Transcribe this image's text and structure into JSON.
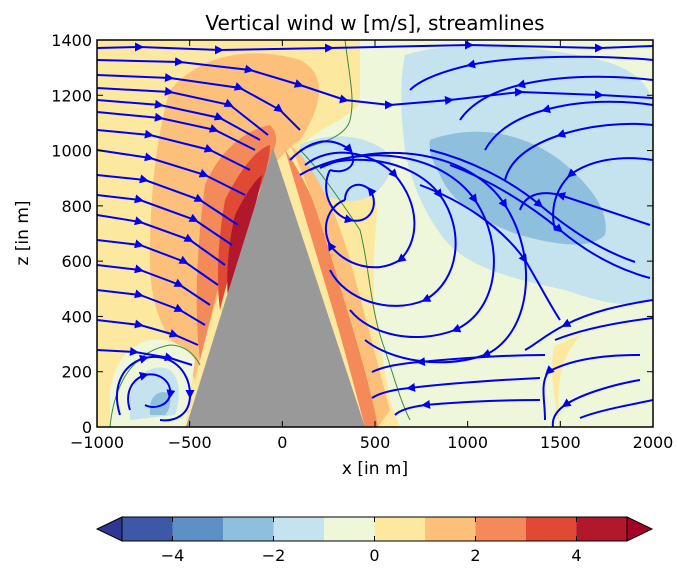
{
  "chart_data": {
    "type": "heatmap",
    "title": "Vertical wind w [m/s], streamlines",
    "xlabel": "x [in m]",
    "ylabel": "z [in m]",
    "xlim": [
      -1000,
      2000
    ],
    "ylim": [
      0,
      1400
    ],
    "xticks": [
      "−1000",
      "−500",
      "0",
      "500",
      "1000",
      "1500",
      "2000"
    ],
    "yticks": [
      "0",
      "200",
      "400",
      "600",
      "800",
      "1000",
      "1200",
      "1400"
    ],
    "grid": false,
    "terrain": {
      "description": "triangular mountain",
      "peak": [
        -30,
        1030
      ],
      "base_left": -520,
      "base_right": 450
    },
    "colorbar": {
      "orientation": "horizontal",
      "extend": "both",
      "levels": [
        -5,
        -4,
        -3,
        -2,
        -1,
        0,
        1,
        2,
        3,
        4,
        5
      ],
      "tick_values": [
        -4,
        -2,
        0,
        2,
        4
      ],
      "tick_labels": [
        "−4",
        "−2",
        "0",
        "2",
        "4"
      ],
      "colors": [
        "#313695",
        "#3c58a6",
        "#5e8fc5",
        "#8ebfdc",
        "#c4e3ee",
        "#eef7d9",
        "#fde8a0",
        "#fdc07a",
        "#f48a5a",
        "#e04a34",
        "#b2182b",
        "#a50026"
      ]
    },
    "w_regions": [
      {
        "w": 0.5,
        "description": "background, weakly positive"
      },
      {
        "w": -0.5,
        "description": "weak descent, right half"
      },
      {
        "w": -1.5,
        "description": "descent region x 650–1800, z 800–1300"
      },
      {
        "w": -2.5,
        "description": "strongest descent core x 800–1600, z 650–1050"
      },
      {
        "w": 2.5,
        "description": "upslope ascent, west flank"
      },
      {
        "w": 4.5,
        "description": "strongest ascent along west slope near x −300"
      },
      {
        "w": 2.0,
        "description": "lee-side rise along east slope"
      },
      {
        "w": -1.5,
        "description": "rotor near x −800, z 0–300"
      }
    ],
    "streamlines": {
      "color": "#0000ee",
      "features": [
        "westerly inflow rising over the west slope",
        "clockwise lee rotor centred near x 350, z 800",
        "counter-rotating eddy near x 1000, z 700",
        "reversed near-surface flow x 500–2000",
        "small rotor near x −750, z 100"
      ]
    }
  }
}
